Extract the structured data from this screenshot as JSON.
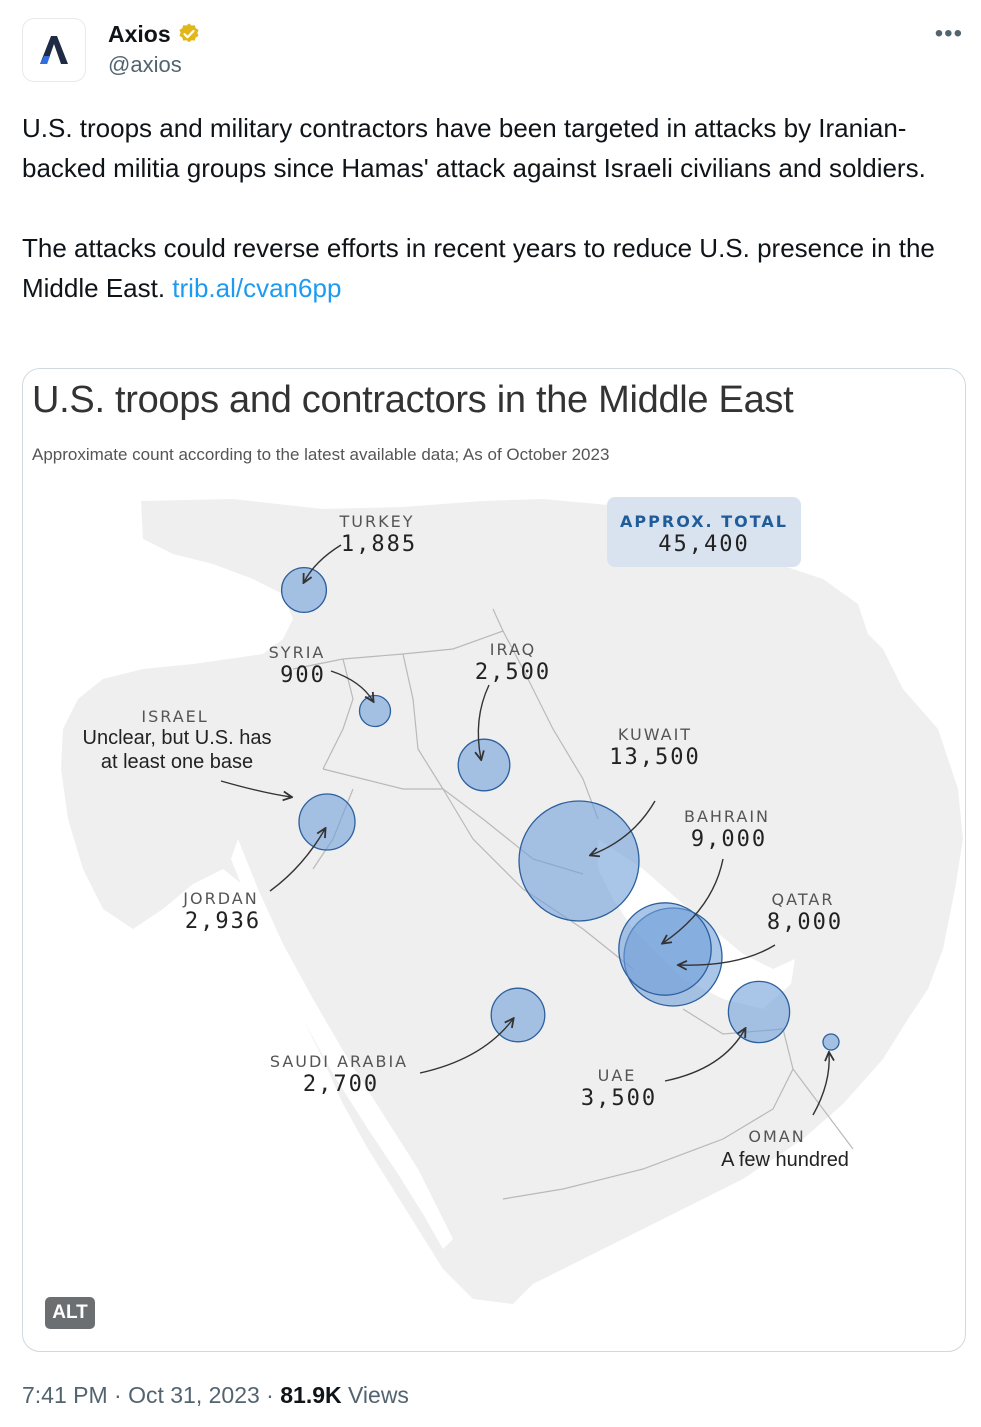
{
  "author": {
    "display_name": "Axios",
    "handle": "@axios",
    "verified_icon": "verified-badge-icon",
    "avatar_icon": "axios-logo-icon",
    "badge_color": "#e2b719"
  },
  "more_label": "•••",
  "tweet": {
    "paragraph1": "U.S. troops and military contractors have been targeted in attacks by Iranian-backed militia groups since Hamas' attack against Israeli civilians and soldiers.",
    "paragraph2": "The attacks could reverse efforts in recent years to reduce U.S. presence in the Middle East. ",
    "link": "trib.al/cvan6pp",
    "link_color": "#1d9bf0"
  },
  "media": {
    "alt_label": "ALT"
  },
  "chart_data": {
    "type": "map-bubble",
    "title": "U.S. troops and contractors in the Middle East",
    "subtitle": "Approximate count according to the latest available data; As of October 2023",
    "total": {
      "label": "APPROX. TOTAL",
      "value": "45,400"
    },
    "bubble_color": "#6f9fd8",
    "locations": [
      {
        "name": "TURKEY",
        "value_label": "1,885",
        "value": 1885
      },
      {
        "name": "SYRIA",
        "value_label": "900",
        "value": 900
      },
      {
        "name": "IRAQ",
        "value_label": "2,500",
        "value": 2500
      },
      {
        "name": "ISRAEL",
        "value_label": "Unclear, but U.S. has at least one base",
        "note_line1": "Unclear, but U.S. has",
        "note_line2": "at least one base",
        "value": null
      },
      {
        "name": "KUWAIT",
        "value_label": "13,500",
        "value": 13500
      },
      {
        "name": "BAHRAIN",
        "value_label": "9,000",
        "value": 9000
      },
      {
        "name": "JORDAN",
        "value_label": "2,936",
        "value": 2936
      },
      {
        "name": "QATAR",
        "value_label": "8,000",
        "value": 8000
      },
      {
        "name": "SAUDI ARABIA",
        "value_label": "2,700",
        "value": 2700
      },
      {
        "name": "UAE",
        "value_label": "3,500",
        "value": 3500
      },
      {
        "name": "OMAN",
        "value_label": "A few hundred",
        "value": null
      }
    ]
  },
  "footer": {
    "time": "7:41 PM · Oct 31, 2023 · ",
    "views_count": "81.9K",
    "views_label": " Views"
  }
}
